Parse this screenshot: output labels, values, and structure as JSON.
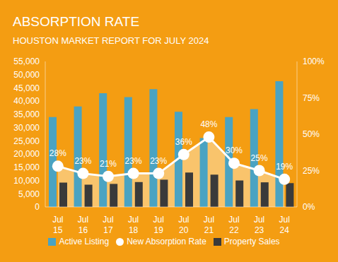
{
  "chart_data": {
    "type": "bar",
    "title": "ABSORPTION RATE",
    "subtitle": "HOUSTON MARKET REPORT FOR JULY 2024",
    "categories": [
      "Jul 15",
      "Jul 16",
      "Jul 17",
      "Jul 18",
      "Jul 19",
      "Jul 20",
      "Jul 21",
      "Jul 22",
      "Jul 23",
      "Jul 24"
    ],
    "series": [
      {
        "name": "Active Listing",
        "type": "bar",
        "color": "#4aa3c2",
        "values": [
          34000,
          38000,
          43000,
          41500,
          44500,
          36000,
          26000,
          34000,
          37000,
          47500
        ]
      },
      {
        "name": "Property Sales",
        "type": "bar",
        "color": "#3a3a3a",
        "values": [
          9200,
          8400,
          8700,
          9400,
          10300,
          13000,
          12200,
          10000,
          9300,
          9000
        ]
      },
      {
        "name": "New Absorption Rate",
        "type": "line",
        "axis": "y2",
        "color": "#ffffff",
        "marker": "circle",
        "data_labels": true,
        "values": [
          28,
          23,
          21,
          23,
          23,
          36,
          48,
          30,
          25,
          19
        ],
        "value_labels": [
          "28%",
          "23%",
          "21%",
          "23%",
          "23%",
          "36%",
          "48%",
          "30%",
          "25%",
          "19%"
        ]
      }
    ],
    "ylim": [
      0,
      55000
    ],
    "yticks": [
      {
        "value": 0,
        "label": "0"
      },
      {
        "value": 5000,
        "label": "5,000"
      },
      {
        "value": 10000,
        "label": "10,000"
      },
      {
        "value": 15000,
        "label": "15,000"
      },
      {
        "value": 20000,
        "label": "20,000"
      },
      {
        "value": 25000,
        "label": "25,000"
      },
      {
        "value": 30000,
        "label": "30,000"
      },
      {
        "value": 35000,
        "label": "35,000"
      },
      {
        "value": 40000,
        "label": "40,000"
      },
      {
        "value": 45000,
        "label": "45,000"
      },
      {
        "value": 50000,
        "label": "50,000"
      },
      {
        "value": 55000,
        "label": "55,000"
      }
    ],
    "y2lim": [
      0,
      100
    ],
    "y2ticks": [
      {
        "value": 0,
        "label": "0%"
      },
      {
        "value": 25,
        "label": "25%"
      },
      {
        "value": 50,
        "label": "50%"
      },
      {
        "value": 75,
        "label": "75%"
      },
      {
        "value": 100,
        "label": "100%"
      }
    ],
    "grid": false,
    "legend": "bottom"
  }
}
